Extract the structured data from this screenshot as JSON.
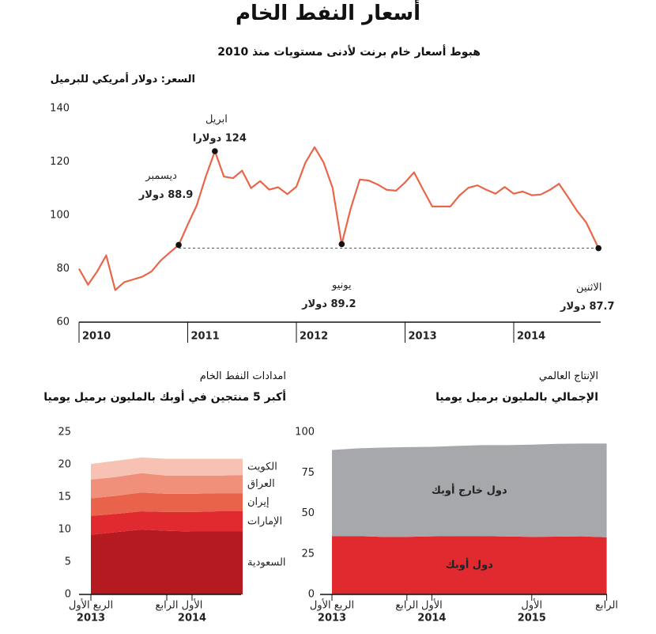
{
  "chart_data": [
    {
      "type": "line",
      "title": "أسعار النفط الخام",
      "subtitle": "هبوط أسعار خام برنت لأدنى مستويات منذ 2010",
      "ylabel": "السعر: دولار أمريكي للبرميل",
      "x": [
        2010,
        2010.083,
        2010.167,
        2010.25,
        2010.333,
        2010.417,
        2010.5,
        2010.583,
        2010.667,
        2010.75,
        2010.833,
        2010.917,
        2011,
        2011.083,
        2011.167,
        2011.25,
        2011.333,
        2011.417,
        2011.5,
        2011.583,
        2011.667,
        2011.75,
        2011.833,
        2011.917,
        2012,
        2012.083,
        2012.167,
        2012.25,
        2012.333,
        2012.417,
        2012.5,
        2012.583,
        2012.667,
        2012.75,
        2012.833,
        2012.917,
        2013,
        2013.083,
        2013.167,
        2013.25,
        2013.333,
        2013.417,
        2013.5,
        2013.583,
        2013.667,
        2013.75,
        2013.833,
        2013.917,
        2014,
        2014.083,
        2014.167,
        2014.25,
        2014.333,
        2014.417,
        2014.5,
        2014.583,
        2014.667,
        2014.78
      ],
      "values": [
        80,
        74,
        79,
        85,
        72,
        75,
        76,
        77,
        79,
        83,
        86,
        88.9,
        96.5,
        103.7,
        114.6,
        124,
        114.5,
        113.9,
        116.7,
        110.2,
        112.8,
        109.6,
        110.5,
        107.9,
        110.7,
        119.7,
        125.5,
        119.8,
        110.3,
        89.2,
        102.6,
        113.4,
        113.0,
        111.5,
        109.5,
        109.2,
        112.3,
        116.1,
        109.5,
        103.3,
        103.3,
        103.3,
        107.4,
        110.3,
        111.2,
        109.5,
        108.1,
        110.6,
        108.1,
        108.9,
        107.5,
        107.8,
        109.5,
        111.8,
        106.8,
        101.6,
        97.3,
        87.7
      ],
      "color": "#e8664a",
      "xlim": [
        2010,
        2014.8
      ],
      "xticks": [
        2010,
        2011,
        2012,
        2013,
        2014
      ],
      "ylim": [
        60,
        140
      ],
      "yticks": [
        60,
        80,
        100,
        120,
        140
      ],
      "annotations": [
        {
          "label": "ديسمبر",
          "x": 2010.917,
          "value": 88.9,
          "value_label": "88.9 دولار"
        },
        {
          "label": "ابريل",
          "x": 2011.25,
          "value": 124,
          "value_label": "124 دولارا"
        },
        {
          "label": "يونيو",
          "x": 2012.417,
          "value": 89.2,
          "value_label": "89.2 دولار"
        },
        {
          "label": "الاثنين",
          "x": 2014.78,
          "value": 87.7,
          "value_label": "87.7 دولار"
        }
      ]
    },
    {
      "type": "stacked-area",
      "title": "امدادات النفط الخام",
      "subtitle": "أكبر 5 منتجين في أوبك بالمليون برميل يوميا",
      "categories": [
        [
          "الربع الأول",
          "2013"
        ],
        [
          null,
          null
        ],
        [
          null,
          null
        ],
        [
          "الرابع",
          null
        ],
        [
          "الأول",
          "2014"
        ],
        [
          null,
          null
        ],
        [
          null,
          null
        ]
      ],
      "ylim": [
        0,
        25
      ],
      "yticks": [
        0,
        5,
        10,
        15,
        20,
        25
      ],
      "series": [
        {
          "name": "السعودية",
          "color": "#b51a21",
          "values": [
            9.2,
            9.6,
            10.0,
            9.8,
            9.7,
            9.7,
            9.7
          ]
        },
        {
          "name": "الإمارات",
          "color": "#e02a30",
          "values": [
            2.9,
            2.8,
            2.8,
            2.9,
            3.0,
            3.1,
            3.1
          ]
        },
        {
          "name": "إيران",
          "color": "#e9634a",
          "values": [
            2.7,
            2.8,
            2.9,
            2.8,
            2.8,
            2.8,
            2.8
          ]
        },
        {
          "name": "العراق",
          "color": "#f0907a",
          "values": [
            2.9,
            2.9,
            3.0,
            2.8,
            2.8,
            2.7,
            2.8
          ]
        },
        {
          "name": "الكويت",
          "color": "#f7c2b4",
          "values": [
            2.4,
            2.5,
            2.4,
            2.6,
            2.6,
            2.6,
            2.5
          ]
        }
      ]
    },
    {
      "type": "stacked-area",
      "title": "الإنتاج العالمي",
      "subtitle": "الإجمالي بالمليون برميل يوميا",
      "categories": [
        [
          "الربع الأول",
          "2013"
        ],
        [
          null,
          null
        ],
        [
          null,
          null
        ],
        [
          "الرابع",
          null
        ],
        [
          "الأول",
          "2014"
        ],
        [
          null,
          null
        ],
        [
          null,
          null
        ],
        [
          null,
          null
        ],
        [
          "الأول",
          "2015"
        ],
        [
          null,
          null
        ],
        [
          null,
          null
        ],
        [
          "الرابع",
          null
        ]
      ],
      "ylim": [
        0,
        100
      ],
      "yticks": [
        0,
        25,
        50,
        75,
        100
      ],
      "series": [
        {
          "name": "دول أوبك",
          "color": "#e02a30",
          "values": [
            36,
            36,
            35.5,
            35.5,
            35.8,
            36,
            36,
            35.7,
            35.5,
            35.6,
            35.8,
            35.2
          ]
        },
        {
          "name": "دول خارج أوبك",
          "color": "#a7a8ab",
          "values": [
            53,
            54,
            55,
            55.3,
            55.2,
            55.5,
            56,
            56.3,
            56.8,
            57.2,
            57.2,
            57.8
          ]
        }
      ]
    }
  ]
}
